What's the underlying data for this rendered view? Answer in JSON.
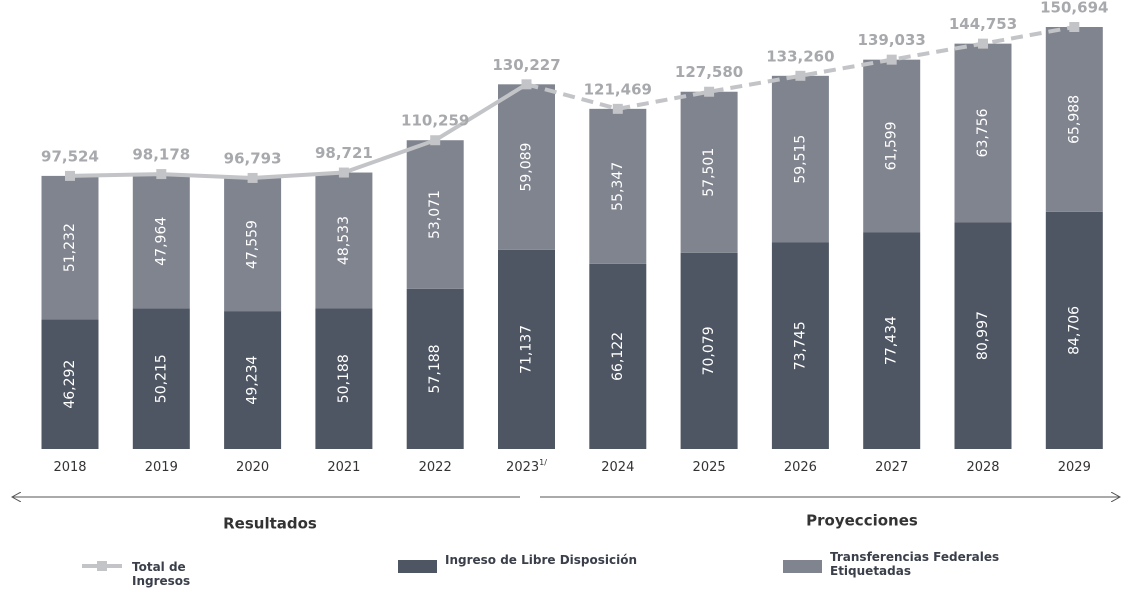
{
  "chart_data": {
    "type": "stacked_bar_line",
    "categories": [
      "2018",
      "2019",
      "2020",
      "2021",
      "2022",
      "2023",
      "2024",
      "2025",
      "2026",
      "2027",
      "2028",
      "2029"
    ],
    "category_superscripts": [
      null,
      null,
      null,
      null,
      null,
      "1/",
      null,
      null,
      null,
      null,
      null,
      null
    ],
    "series": [
      {
        "name": "Ingreso de Libre Disposición",
        "color": "#4e5563",
        "values": [
          46292,
          50215,
          49234,
          50188,
          57188,
          71137,
          66122,
          70079,
          73745,
          77434,
          80997,
          84706
        ],
        "value_labels": [
          "46,292",
          "50,215",
          "49,234",
          "50,188",
          "57,188",
          "71,137",
          "66,122",
          "70,079",
          "73,745",
          "77,434",
          "80,997",
          "84,706"
        ]
      },
      {
        "name": "Transferencias Federales Etiquetadas",
        "color": "#80848f",
        "values": [
          51232,
          47964,
          47559,
          48533,
          53071,
          59089,
          55347,
          57501,
          59515,
          61599,
          63756,
          65988
        ],
        "value_labels": [
          "51,232",
          "47,964",
          "47,559",
          "48,533",
          "53,071",
          "59,089",
          "55,347",
          "57,501",
          "59,515",
          "61,599",
          "63,756",
          "65,988"
        ]
      },
      {
        "name": "Total de Ingresos",
        "color": "#c3c4c7",
        "type": "line",
        "values": [
          97524,
          98178,
          96793,
          98721,
          110259,
          130227,
          121469,
          127580,
          133260,
          139033,
          144753,
          150694
        ],
        "value_labels": [
          "97,524",
          "98,178",
          "96,793",
          "98,721",
          "110,259",
          "130,227",
          "121,469",
          "127,580",
          "133,260",
          "139,033",
          "144,753",
          "150,694"
        ]
      }
    ],
    "line_dashed_from": "2023",
    "sections": [
      "Resultados",
      "Proyecciones"
    ]
  }
}
